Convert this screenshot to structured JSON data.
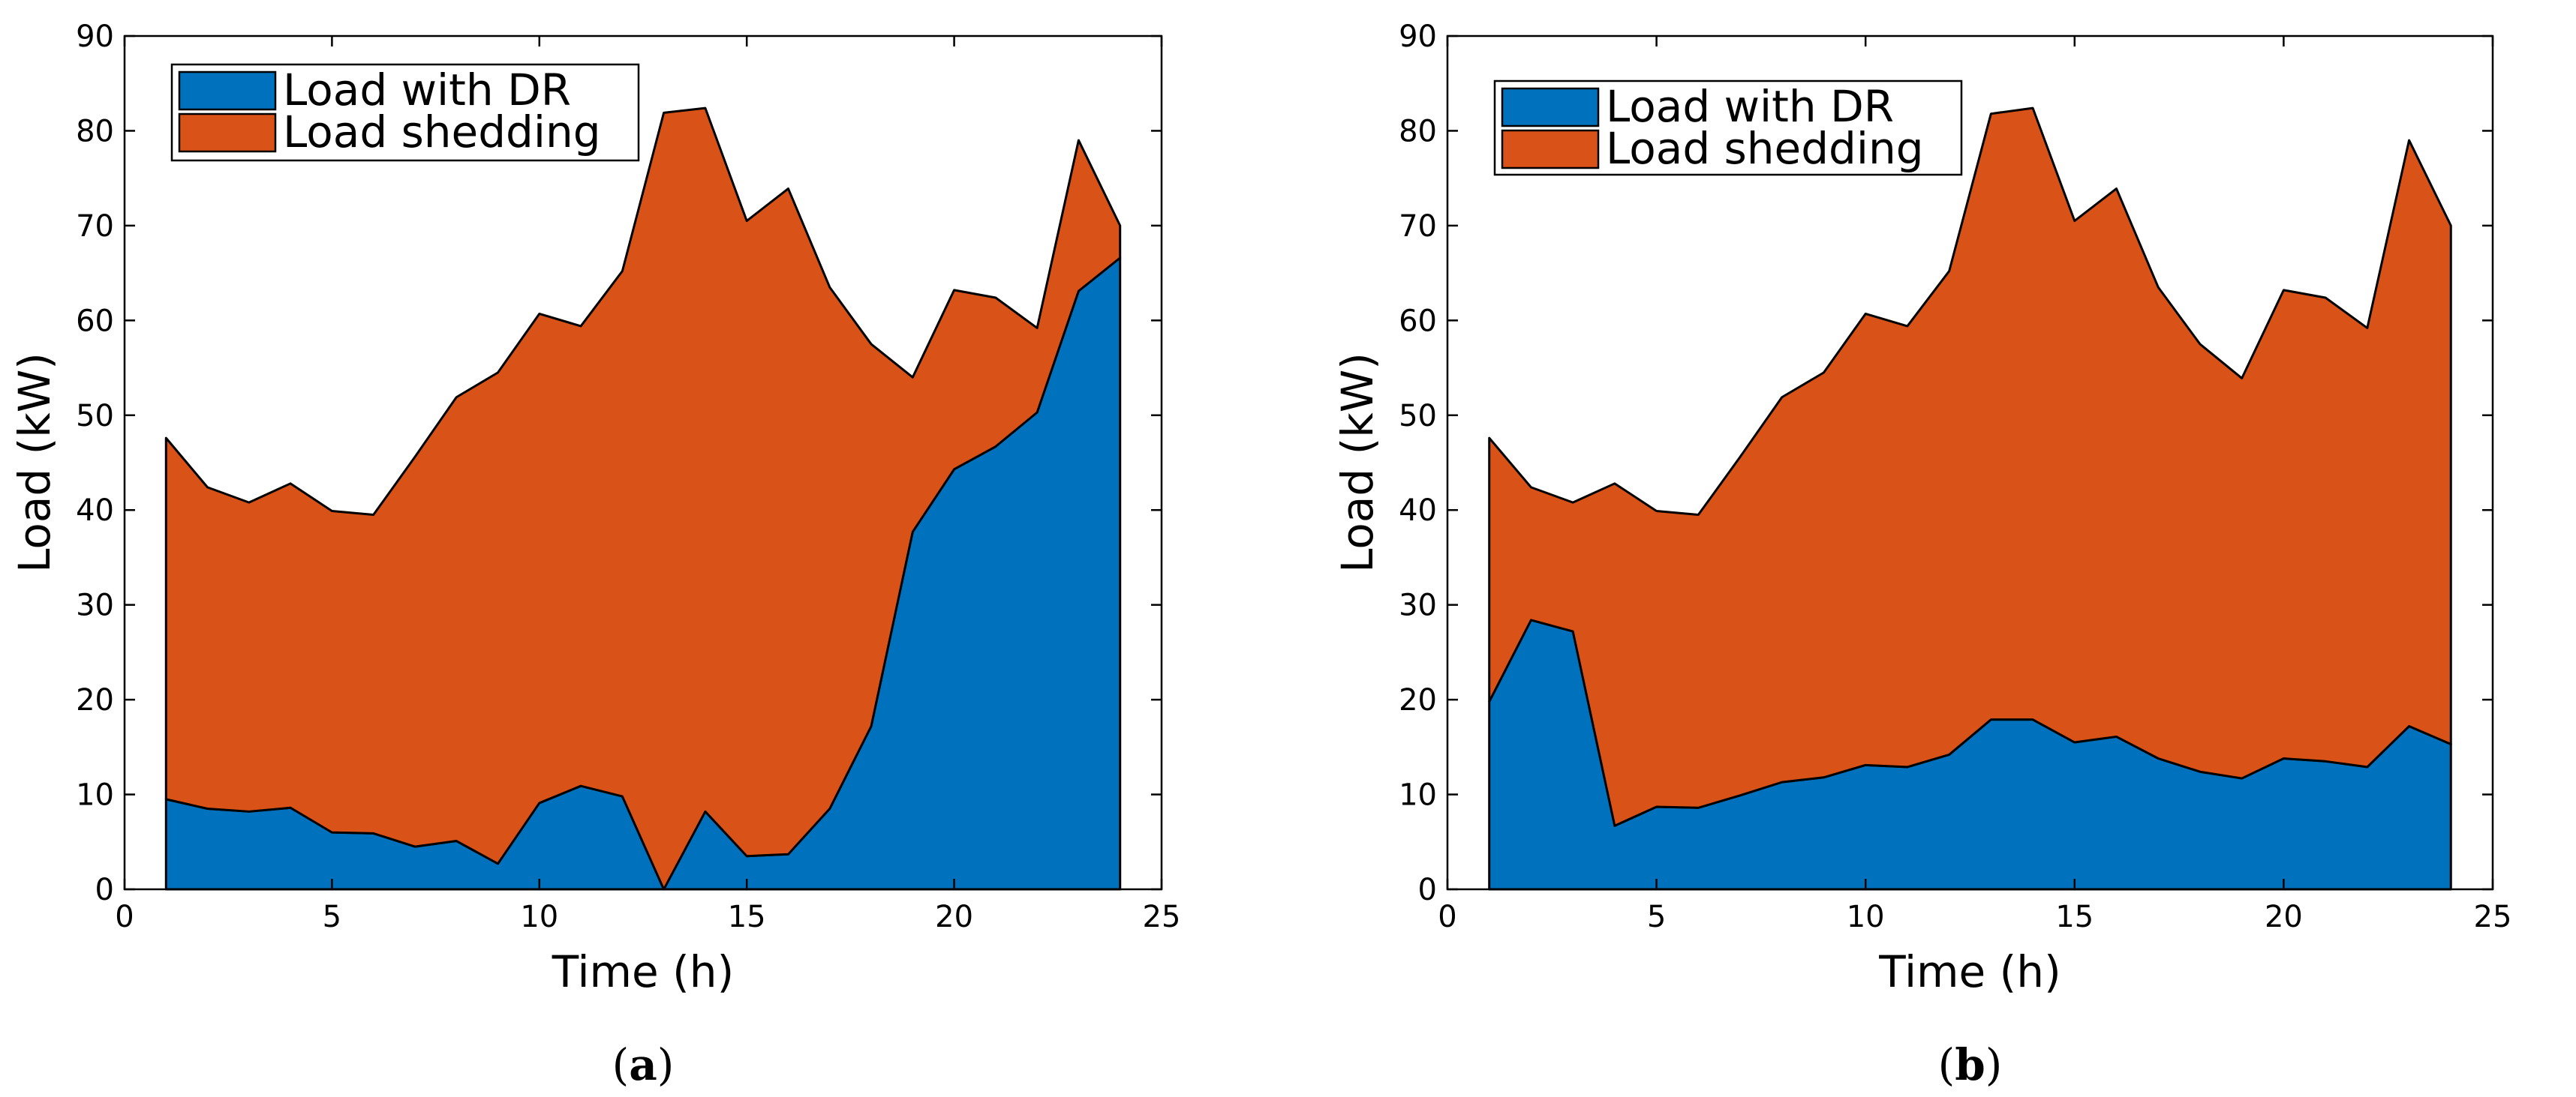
{
  "colors": {
    "load_with_dr": "#0072BD",
    "load_shedding": "#D95319",
    "axes": "#000000",
    "background": "#FFFFFF"
  },
  "chart_data": [
    {
      "type": "area",
      "panel_label": "a",
      "title": "",
      "xlabel": "Time (h)",
      "ylabel": "Load (kW)",
      "xlim": [
        0,
        25
      ],
      "ylim": [
        0,
        90
      ],
      "xticks": [
        0,
        5,
        10,
        15,
        20,
        25
      ],
      "yticks": [
        0,
        10,
        20,
        30,
        40,
        50,
        60,
        70,
        80,
        90
      ],
      "grid": false,
      "stacked": true,
      "legend_position": "top-left",
      "x": [
        1,
        2,
        3,
        4,
        5,
        6,
        7,
        8,
        9,
        10,
        11,
        12,
        13,
        14,
        15,
        16,
        17,
        18,
        19,
        20,
        21,
        22,
        23,
        24
      ],
      "series": [
        {
          "name": "Load with DR",
          "values": [
            9.5,
            8.5,
            8.2,
            8.6,
            6.0,
            5.9,
            4.5,
            5.1,
            2.7,
            9.1,
            10.9,
            9.8,
            0.0,
            8.2,
            3.5,
            3.7,
            8.5,
            17.2,
            37.7,
            44.3,
            46.7,
            50.3,
            63.1,
            66.6
          ]
        },
        {
          "name": "Load shedding",
          "values": [
            38.1,
            33.9,
            32.6,
            34.2,
            33.9,
            33.6,
            41.1,
            46.8,
            51.8,
            51.6,
            48.5,
            55.4,
            81.9,
            74.2,
            67.0,
            70.2,
            55.0,
            40.3,
            16.3,
            18.9,
            15.7,
            8.9,
            15.9,
            3.4
          ]
        }
      ]
    },
    {
      "type": "area",
      "panel_label": "b",
      "title": "",
      "xlabel": "Time (h)",
      "ylabel": "Load (kW)",
      "xlim": [
        0,
        25
      ],
      "ylim": [
        0,
        90
      ],
      "xticks": [
        0,
        5,
        10,
        15,
        20,
        25
      ],
      "yticks": [
        0,
        10,
        20,
        30,
        40,
        50,
        60,
        70,
        80,
        90
      ],
      "grid": false,
      "stacked": true,
      "legend_position": "top-left",
      "x": [
        1,
        2,
        3,
        4,
        5,
        6,
        7,
        8,
        9,
        10,
        11,
        12,
        13,
        14,
        15,
        16,
        17,
        18,
        19,
        20,
        21,
        22,
        23,
        24
      ],
      "series": [
        {
          "name": "Load with DR",
          "values": [
            19.8,
            28.4,
            27.2,
            6.7,
            8.7,
            8.6,
            9.9,
            11.3,
            11.8,
            13.1,
            12.9,
            14.2,
            17.9,
            17.9,
            15.5,
            16.1,
            13.8,
            12.4,
            11.7,
            13.8,
            13.5,
            12.9,
            17.2,
            15.3
          ]
        },
        {
          "name": "Load shedding",
          "values": [
            27.8,
            14.0,
            13.6,
            36.1,
            31.2,
            30.9,
            35.7,
            40.6,
            42.7,
            47.6,
            46.5,
            51.0,
            63.9,
            64.5,
            55.0,
            57.8,
            49.7,
            45.1,
            42.2,
            49.4,
            48.9,
            46.3,
            61.8,
            54.7
          ]
        }
      ]
    }
  ]
}
